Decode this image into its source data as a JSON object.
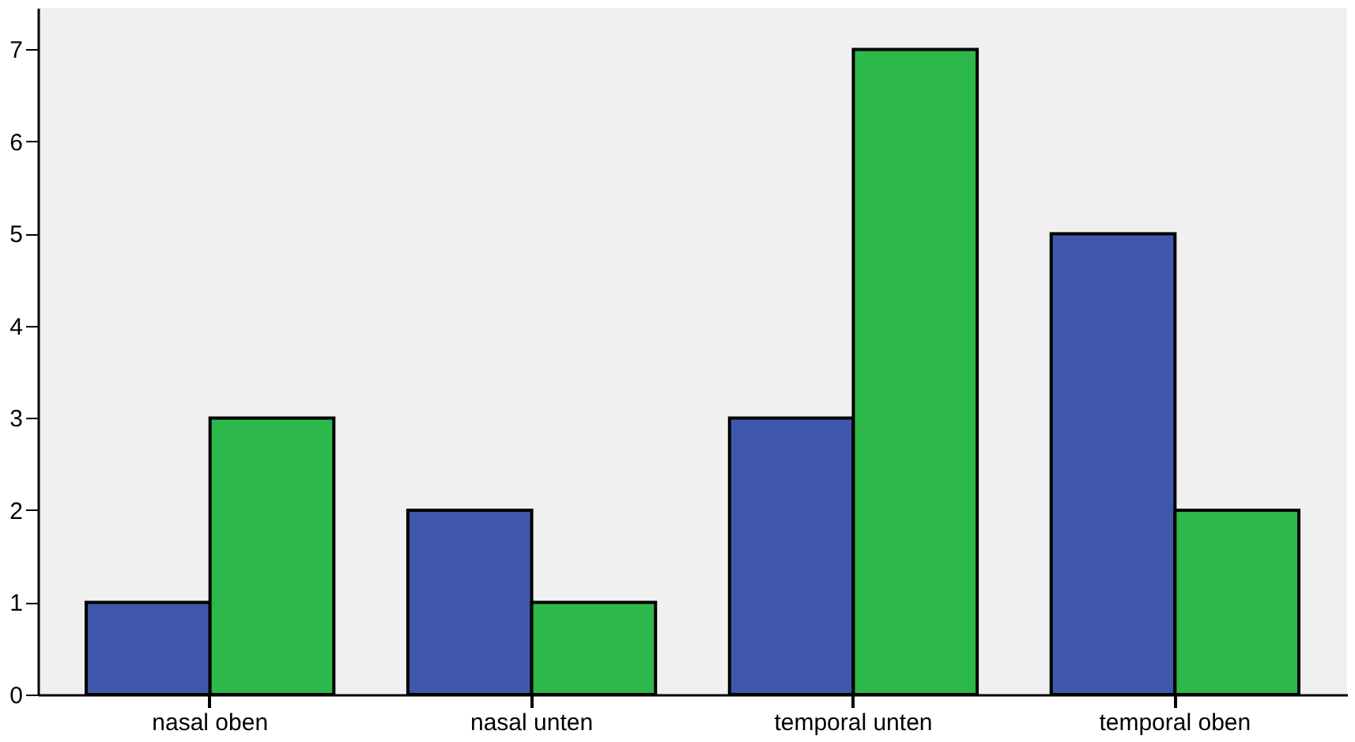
{
  "chart_data": {
    "type": "bar",
    "categories": [
      "nasal oben",
      "nasal unten",
      "temporal unten",
      "temporal oben"
    ],
    "series": [
      {
        "color": "#3f58ab",
        "values": [
          1,
          2,
          3,
          5
        ]
      },
      {
        "color": "#2db84b",
        "values": [
          3,
          1,
          7,
          2
        ]
      }
    ],
    "ylim": [
      0,
      7.45
    ],
    "yticks": [
      0,
      1,
      2,
      3,
      4,
      5,
      6,
      7
    ]
  }
}
